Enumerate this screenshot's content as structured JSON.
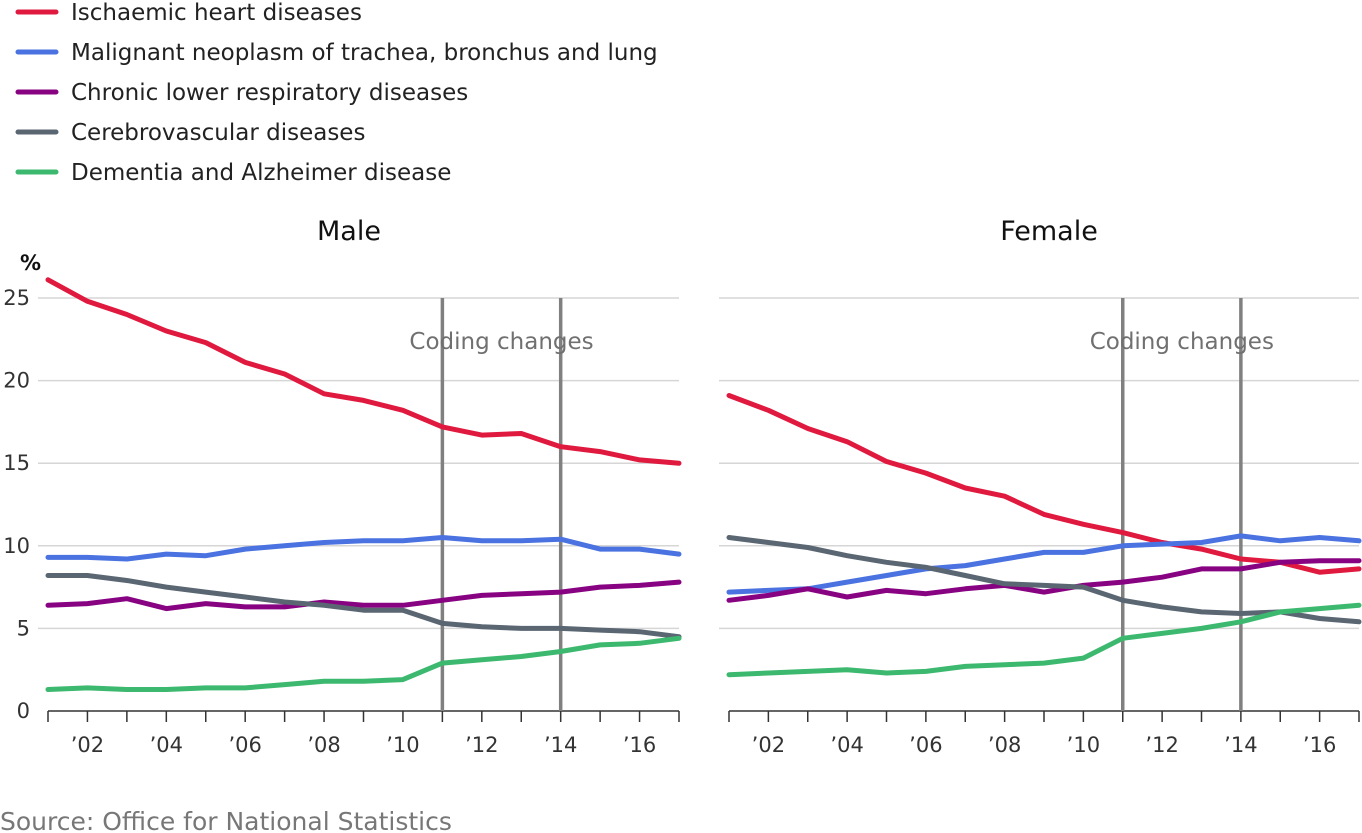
{
  "chart_data": {
    "type": "line",
    "y_unit": "%",
    "ylim": [
      0,
      25
    ],
    "yticks": [
      0,
      5,
      10,
      15,
      20,
      25
    ],
    "xlim": [
      2001,
      2017
    ],
    "x": [
      2001,
      2002,
      2003,
      2004,
      2005,
      2006,
      2007,
      2008,
      2009,
      2010,
      2011,
      2012,
      2013,
      2014,
      2015,
      2016,
      2017
    ],
    "xticks": [
      2002,
      2004,
      2006,
      2008,
      2010,
      2012,
      2014,
      2016
    ],
    "xtick_labels": [
      "’02",
      "’04",
      "’06",
      "’08",
      "’10",
      "’12",
      "’14",
      "’16"
    ],
    "grid": "horizontal",
    "legend_position": "top-left",
    "legend": [
      {
        "name": "Ischaemic heart diseases",
        "color": "#e0193f"
      },
      {
        "name": "Malignant neoplasm of trachea, bronchus and lung",
        "color": "#4a72e0"
      },
      {
        "name": "Chronic lower respiratory diseases",
        "color": "#880382"
      },
      {
        "name": "Cerebrovascular diseases",
        "color": "#5a6672"
      },
      {
        "name": "Dementia and Alzheimer disease",
        "color": "#3cb86f"
      }
    ],
    "annotation": {
      "label": "Coding changes",
      "x_values": [
        2011,
        2014
      ],
      "color": "#808080"
    },
    "panels": [
      {
        "title": "Male",
        "series": [
          {
            "name": "Ischaemic heart diseases",
            "values": [
              26.1,
              24.8,
              24.0,
              23.0,
              22.3,
              21.1,
              20.4,
              19.2,
              18.8,
              18.2,
              17.2,
              16.7,
              16.8,
              16.0,
              15.7,
              15.2,
              15.0
            ]
          },
          {
            "name": "Malignant neoplasm of trachea, bronchus and lung",
            "values": [
              9.3,
              9.3,
              9.2,
              9.5,
              9.4,
              9.8,
              10.0,
              10.2,
              10.3,
              10.3,
              10.5,
              10.3,
              10.3,
              10.4,
              9.8,
              9.8,
              9.5
            ]
          },
          {
            "name": "Chronic lower respiratory diseases",
            "values": [
              6.4,
              6.5,
              6.8,
              6.2,
              6.5,
              6.3,
              6.3,
              6.6,
              6.4,
              6.4,
              6.7,
              7.0,
              7.1,
              7.2,
              7.5,
              7.6,
              7.8
            ]
          },
          {
            "name": "Cerebrovascular diseases",
            "values": [
              8.2,
              8.2,
              7.9,
              7.5,
              7.2,
              6.9,
              6.6,
              6.4,
              6.1,
              6.1,
              5.3,
              5.1,
              5.0,
              5.0,
              4.9,
              4.8,
              4.5
            ]
          },
          {
            "name": "Dementia and Alzheimer disease",
            "values": [
              1.3,
              1.4,
              1.3,
              1.3,
              1.4,
              1.4,
              1.6,
              1.8,
              1.8,
              1.9,
              2.9,
              3.1,
              3.3,
              3.6,
              4.0,
              4.1,
              4.4
            ]
          }
        ]
      },
      {
        "title": "Female",
        "series": [
          {
            "name": "Ischaemic heart diseases",
            "values": [
              19.1,
              18.2,
              17.1,
              16.3,
              15.1,
              14.4,
              13.5,
              13.0,
              11.9,
              11.3,
              10.8,
              10.2,
              9.8,
              9.2,
              9.0,
              8.4,
              8.6
            ]
          },
          {
            "name": "Malignant neoplasm of trachea, bronchus and lung",
            "values": [
              7.2,
              7.3,
              7.4,
              7.8,
              8.2,
              8.6,
              8.8,
              9.2,
              9.6,
              9.6,
              10.0,
              10.1,
              10.2,
              10.6,
              10.3,
              10.5,
              10.3
            ]
          },
          {
            "name": "Chronic lower respiratory diseases",
            "values": [
              6.7,
              7.0,
              7.4,
              6.9,
              7.3,
              7.1,
              7.4,
              7.6,
              7.2,
              7.6,
              7.8,
              8.1,
              8.6,
              8.6,
              9.0,
              9.1,
              9.1
            ]
          },
          {
            "name": "Cerebrovascular diseases",
            "values": [
              10.5,
              10.2,
              9.9,
              9.4,
              9.0,
              8.7,
              8.2,
              7.7,
              7.6,
              7.5,
              6.7,
              6.3,
              6.0,
              5.9,
              6.0,
              5.6,
              5.4
            ]
          },
          {
            "name": "Dementia and Alzheimer disease",
            "values": [
              2.2,
              2.3,
              2.4,
              2.5,
              2.3,
              2.4,
              2.7,
              2.8,
              2.9,
              3.2,
              4.4,
              4.7,
              5.0,
              5.4,
              6.0,
              6.2,
              6.4
            ]
          }
        ]
      }
    ]
  },
  "source": "Source: Office for National Statistics"
}
